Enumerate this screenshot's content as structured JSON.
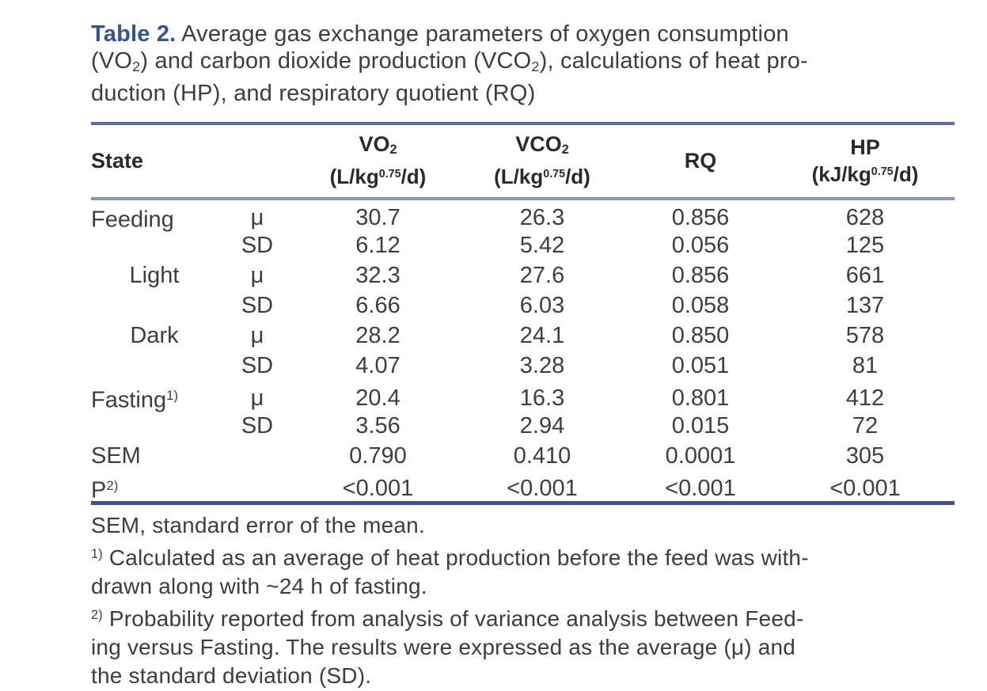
{
  "colors": {
    "accent_blue": "#3452a4",
    "rule_dark": "#3d4e9d",
    "rule_light": "#8795c5",
    "text": "#3a3a3a"
  },
  "caption": {
    "label": "Table 2.",
    "line1_rest": " Average gas exchange parameters of oxygen consumption",
    "line2": {
      "t1": "(VO",
      "s1": "2",
      "t2": ") and carbon dioxide production (VCO",
      "s2": "2",
      "t3": "), calculations of heat pro-"
    },
    "line3": "duction (HP), and respiratory quotient (RQ)"
  },
  "table": {
    "header": {
      "state": "State",
      "stat": "",
      "vo2": {
        "name": "VO",
        "sub": "2",
        "unit_pre": "(L/kg",
        "unit_sup": "0.75",
        "unit_post": "/d)"
      },
      "vco2": {
        "name": "VCO",
        "sub": "2",
        "unit_pre": "(L/kg",
        "unit_sup": "0.75",
        "unit_post": "/d)"
      },
      "rq": {
        "name": "RQ"
      },
      "hp": {
        "name": "HP",
        "unit_pre": "(kJ/kg",
        "unit_sup": "0.75",
        "unit_post": "/d)"
      }
    },
    "rows": [
      {
        "state": "Feeding",
        "stat": "μ",
        "vo2": "30.7",
        "vco2": "26.3",
        "rq": "0.856",
        "hp": "628"
      },
      {
        "state": "",
        "stat": "SD",
        "vo2": "6.12",
        "vco2": "5.42",
        "rq": "0.056",
        "hp": "125"
      },
      {
        "state": "Light",
        "stat": "μ",
        "vo2": "32.3",
        "vco2": "27.6",
        "rq": "0.856",
        "hp": "661"
      },
      {
        "state": "",
        "stat": "SD",
        "vo2": "6.66",
        "vco2": "6.03",
        "rq": "0.058",
        "hp": "137"
      },
      {
        "state": "Dark",
        "stat": "μ",
        "vo2": "28.2",
        "vco2": "24.1",
        "rq": "0.850",
        "hp": "578"
      },
      {
        "state": "",
        "stat": "SD",
        "vo2": "4.07",
        "vco2": "3.28",
        "rq": "0.051",
        "hp": "81"
      },
      {
        "state": "Fasting",
        "state_sup": "1)",
        "stat": "μ",
        "vo2": "20.4",
        "vco2": "16.3",
        "rq": "0.801",
        "hp": "412"
      },
      {
        "state": "",
        "stat": "SD",
        "vo2": "3.56",
        "vco2": "2.94",
        "rq": "0.015",
        "hp": "72"
      },
      {
        "state": "SEM",
        "stat": "",
        "vo2": "0.790",
        "vco2": "0.410",
        "rq": "0.0001",
        "hp": "305"
      },
      {
        "state": "P",
        "state_sup": "2)",
        "stat": "",
        "vo2": "<0.001",
        "vco2": "<0.001",
        "rq": "<0.001",
        "hp": "<0.001"
      }
    ]
  },
  "footnotes": [
    {
      "sup": "",
      "text": "SEM, standard error of the mean."
    },
    {
      "sup": "1)",
      "text": " Calculated as an average of heat production before the feed was with-"
    },
    {
      "sup": "",
      "text": "drawn along with ~24 h of fasting."
    },
    {
      "sup": "2)",
      "text": " Probability reported from analysis of variance analysis between Feed-"
    },
    {
      "sup": "",
      "text": "ing versus Fasting. The results were expressed as the average (μ) and"
    },
    {
      "sup": "",
      "text": "the standard deviation (SD)."
    }
  ]
}
